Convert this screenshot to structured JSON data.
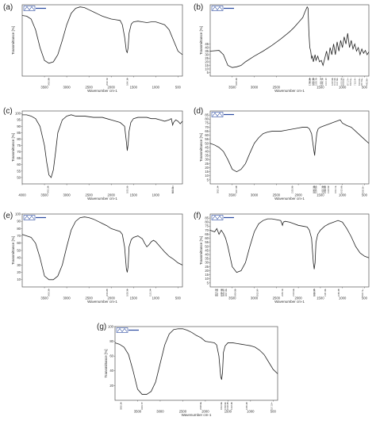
{
  "figure": {
    "panels": [
      "a",
      "b",
      "c",
      "d",
      "e",
      "f",
      "g"
    ]
  },
  "chart_data": [
    {
      "panel": "(a)",
      "type": "line",
      "logo": true,
      "xlabel": "Wavenumber cm-1",
      "ylabel": "Transmittance [%]",
      "xlim": [
        4000,
        400
      ],
      "ylim": [
        0,
        100
      ],
      "xticks": [
        "3500",
        "3000",
        "2500",
        "2000",
        "1500",
        "1000",
        "500"
      ],
      "yticks": [],
      "x": [
        4000,
        3900,
        3800,
        3700,
        3600,
        3500,
        3400,
        3300,
        3200,
        3100,
        3000,
        2900,
        2800,
        2700,
        2600,
        2500,
        2400,
        2300,
        2200,
        2100,
        2000,
        1900,
        1800,
        1750,
        1700,
        1660,
        1640,
        1620,
        1600,
        1550,
        1500,
        1400,
        1300,
        1200,
        1100,
        1000,
        900,
        800,
        700,
        600,
        500,
        400
      ],
      "y": [
        85,
        84,
        80,
        65,
        40,
        22,
        18,
        20,
        30,
        50,
        72,
        88,
        95,
        97,
        96,
        93,
        90,
        87,
        84,
        82,
        80,
        79,
        78,
        72,
        55,
        35,
        33,
        40,
        60,
        73,
        76,
        77,
        76,
        75,
        76,
        76,
        74,
        72,
        65,
        50,
        35,
        30
      ],
      "peaks": [
        "3402.88",
        "2092.72",
        "1640.16"
      ]
    },
    {
      "panel": "(b)",
      "type": "line",
      "logo": true,
      "xlabel": "Wavenumber cm-1",
      "ylabel": "Transmittance [%]",
      "xlim": [
        4000,
        400
      ],
      "ylim": [
        0,
        100
      ],
      "xticks": [
        "3500",
        "3000",
        "2500",
        "1500",
        "1000",
        "500"
      ],
      "yticks": [
        "5",
        "10",
        "15",
        "20",
        "25",
        "30",
        "35",
        "40",
        "45"
      ],
      "x": [
        4000,
        3800,
        3700,
        3600,
        3500,
        3400,
        3300,
        3200,
        3000,
        2800,
        2600,
        2400,
        2200,
        2100,
        2000,
        1900,
        1850,
        1800,
        1780,
        1760,
        1740,
        1720,
        1700,
        1680,
        1660,
        1640,
        1620,
        1600,
        1560,
        1520,
        1480,
        1440,
        1400,
        1360,
        1320,
        1280,
        1240,
        1200,
        1160,
        1120,
        1080,
        1040,
        1000,
        960,
        920,
        880,
        840,
        800,
        760,
        720,
        680,
        640,
        600,
        560,
        520,
        480,
        440,
        400
      ],
      "y": [
        35,
        36,
        30,
        15,
        12,
        13,
        15,
        20,
        28,
        35,
        43,
        52,
        62,
        68,
        75,
        82,
        90,
        97,
        95,
        60,
        40,
        35,
        25,
        28,
        20,
        25,
        30,
        22,
        28,
        20,
        22,
        15,
        25,
        35,
        22,
        40,
        30,
        45,
        30,
        48,
        35,
        50,
        40,
        55,
        45,
        60,
        40,
        50,
        38,
        45,
        35,
        40,
        30,
        38,
        32,
        36,
        30,
        34
      ],
      "peaks": [
        "3405.43",
        "1743.32",
        "1736.04",
        "1663.49",
        "1652.30",
        "1593.73",
        "1490.79",
        "1446.74",
        "1372.17",
        "1225.95",
        "1172.34",
        "1117.82",
        "1015.52",
        "974.61",
        "877.27",
        "810.51",
        "715.14",
        "613.18",
        "557.63",
        "443.96"
      ]
    },
    {
      "panel": "(c)",
      "type": "line",
      "logo": false,
      "xlabel": "Wavenumber cm-1",
      "ylabel": "Transmittance [%]",
      "xlim": [
        4000,
        400
      ],
      "ylim": [
        45,
        102
      ],
      "xticks": [
        "4000",
        "3500",
        "3000",
        "2500",
        "2000",
        "1500",
        "1000"
      ],
      "yticks": [
        "50",
        "55",
        "60",
        "65",
        "70",
        "75",
        "80",
        "85",
        "90",
        "95",
        "100"
      ],
      "x": [
        4000,
        3900,
        3800,
        3700,
        3600,
        3500,
        3450,
        3400,
        3350,
        3300,
        3250,
        3200,
        3100,
        3000,
        2900,
        2800,
        2600,
        2400,
        2200,
        2100,
        2000,
        1900,
        1800,
        1700,
        1660,
        1640,
        1620,
        1600,
        1560,
        1500,
        1400,
        1300,
        1200,
        1100,
        1000,
        900,
        800,
        700,
        650,
        620,
        600,
        550,
        500,
        450,
        400
      ],
      "y": [
        99,
        99,
        98,
        96,
        90,
        75,
        62,
        52,
        50,
        56,
        70,
        85,
        95,
        98,
        99,
        98,
        98,
        97,
        97,
        96,
        95,
        94,
        93,
        90,
        78,
        71,
        76,
        86,
        93,
        96,
        97,
        97,
        97,
        96,
        96,
        95,
        94,
        95,
        96,
        91,
        93,
        95,
        94,
        92,
        94
      ],
      "peaks": [
        "3415.24",
        "1635.51",
        "617.75",
        "609.63"
      ]
    },
    {
      "panel": "(d)",
      "type": "line",
      "logo": true,
      "xlabel": "Wavenumber cm-1",
      "ylabel": "Transmittance [%]",
      "xlim": [
        4000,
        400
      ],
      "ylim": [
        0,
        90
      ],
      "xticks": [
        "3500",
        "3000",
        "2500",
        "2000",
        "1500",
        "1000",
        "500"
      ],
      "yticks": [
        "5",
        "10",
        "15",
        "20",
        "25",
        "30",
        "35",
        "40",
        "45",
        "50",
        "55",
        "60",
        "65",
        "70",
        "75",
        "80",
        "85"
      ],
      "x": [
        4000,
        3900,
        3800,
        3700,
        3600,
        3500,
        3400,
        3300,
        3200,
        3100,
        3000,
        2900,
        2800,
        2700,
        2600,
        2500,
        2400,
        2300,
        2200,
        2100,
        2000,
        1900,
        1800,
        1750,
        1700,
        1650,
        1630,
        1610,
        1580,
        1550,
        1500,
        1400,
        1300,
        1200,
        1100,
        1050,
        1000,
        900,
        800,
        700,
        600,
        500,
        400
      ],
      "y": [
        50,
        48,
        45,
        40,
        30,
        18,
        15,
        18,
        25,
        38,
        50,
        57,
        62,
        64,
        65,
        65,
        65,
        66,
        67,
        68,
        69,
        70,
        70,
        68,
        62,
        42,
        35,
        48,
        63,
        68,
        70,
        72,
        74,
        76,
        78,
        79,
        75,
        72,
        70,
        65,
        60,
        55,
        50
      ],
      "peaks": [
        "3825.24",
        "3407.98",
        "2135.82",
        "1645.35",
        "1635.29",
        "1594.90",
        "1452.38",
        "1413.18",
        "1388.90",
        "1318.52",
        "1152.71",
        "1023.02",
        "536.92"
      ]
    },
    {
      "panel": "(e)",
      "type": "line",
      "logo": true,
      "xlabel": "Wavenumber cm-1",
      "ylabel": "Transmittance [%]",
      "xlim": [
        4000,
        400
      ],
      "ylim": [
        0,
        100
      ],
      "xticks": [
        "3500",
        "3000",
        "2500",
        "2000",
        "1500",
        "1000",
        "500"
      ],
      "yticks": [
        "10",
        "20",
        "30",
        "40",
        "50",
        "60",
        "70",
        "80",
        "90",
        "100"
      ],
      "x": [
        4000,
        3900,
        3800,
        3700,
        3600,
        3500,
        3400,
        3300,
        3200,
        3100,
        3000,
        2900,
        2800,
        2700,
        2600,
        2500,
        2400,
        2300,
        2200,
        2100,
        2000,
        1900,
        1800,
        1750,
        1700,
        1660,
        1640,
        1620,
        1600,
        1550,
        1500,
        1400,
        1300,
        1250,
        1200,
        1150,
        1100,
        1050,
        1000,
        900,
        800,
        700,
        600,
        500,
        400
      ],
      "y": [
        72,
        70,
        68,
        60,
        40,
        15,
        10,
        10,
        15,
        30,
        55,
        78,
        90,
        95,
        96,
        95,
        93,
        90,
        87,
        84,
        80,
        78,
        76,
        72,
        55,
        25,
        20,
        28,
        55,
        65,
        68,
        70,
        66,
        60,
        55,
        58,
        62,
        64,
        62,
        55,
        48,
        42,
        38,
        33,
        30
      ],
      "peaks": [
        "3403.30",
        "2093.85",
        "1638.36",
        "1122.24"
      ]
    },
    {
      "panel": "(f)",
      "type": "line",
      "logo": true,
      "xlabel": "Wavenumber cm-1",
      "ylabel": "Transmittance [%]",
      "xlim": [
        4000,
        400
      ],
      "ylim": [
        0,
        90
      ],
      "xticks": [
        "3500",
        "3000",
        "2500",
        "2000",
        "1500",
        "1000",
        "500"
      ],
      "yticks": [
        "5",
        "10",
        "15",
        "20",
        "25",
        "30",
        "35",
        "40",
        "45",
        "50",
        "55",
        "60",
        "65",
        "70",
        "75",
        "80",
        "85"
      ],
      "x": [
        4000,
        3900,
        3850,
        3800,
        3750,
        3700,
        3650,
        3600,
        3500,
        3400,
        3300,
        3200,
        3100,
        3000,
        2900,
        2800,
        2700,
        2600,
        2500,
        2400,
        2360,
        2340,
        2300,
        2200,
        2100,
        2000,
        1900,
        1800,
        1750,
        1700,
        1660,
        1640,
        1620,
        1600,
        1560,
        1500,
        1400,
        1300,
        1200,
        1100,
        1000,
        900,
        800,
        700,
        600,
        500,
        400
      ],
      "y": [
        70,
        68,
        72,
        65,
        70,
        66,
        60,
        50,
        25,
        18,
        20,
        30,
        50,
        68,
        78,
        82,
        84,
        84,
        83,
        82,
        76,
        80,
        81,
        80,
        78,
        76,
        75,
        74,
        70,
        60,
        30,
        22,
        30,
        55,
        65,
        70,
        75,
        78,
        80,
        82,
        80,
        72,
        62,
        50,
        42,
        38,
        36
      ],
      "peaks": [
        "3873.72",
        "3837.56",
        "3746.70",
        "3727.71",
        "3694.37",
        "3637.83",
        "3434.82",
        "2925.87",
        "2359.70",
        "2104.09",
        "1642.75",
        "1628.97",
        "1387.84",
        "1086.46",
        "539.73"
      ]
    },
    {
      "panel": "(g)",
      "type": "line",
      "logo": true,
      "xlabel": "Wavenumber cm-1",
      "ylabel": "Transmittance [%]",
      "xlim": [
        4000,
        400
      ],
      "ylim": [
        0,
        100
      ],
      "xticks": [
        "3500",
        "3000",
        "2500",
        "2000",
        "1500",
        "1000",
        "500"
      ],
      "yticks": [
        "20",
        "40",
        "60",
        "80",
        "100"
      ],
      "x": [
        4000,
        3900,
        3800,
        3700,
        3600,
        3500,
        3400,
        3300,
        3200,
        3100,
        3000,
        2900,
        2800,
        2700,
        2600,
        2500,
        2400,
        2300,
        2200,
        2100,
        2000,
        1900,
        1800,
        1750,
        1700,
        1660,
        1640,
        1620,
        1600,
        1560,
        1500,
        1400,
        1300,
        1200,
        1100,
        1000,
        900,
        800,
        700,
        600,
        500,
        400
      ],
      "y": [
        78,
        76,
        72,
        62,
        40,
        15,
        8,
        8,
        12,
        25,
        50,
        75,
        90,
        96,
        97,
        97,
        95,
        92,
        88,
        85,
        80,
        79,
        78,
        75,
        60,
        32,
        28,
        38,
        65,
        74,
        78,
        78,
        77,
        76,
        75,
        74,
        72,
        68,
        62,
        52,
        42,
        36
      ],
      "peaks": [
        "3865.25",
        "3403.77",
        "2098.56",
        "1642.96",
        "1558.91",
        "1508.45",
        "1418.46",
        "1085.29",
        "527.52"
      ]
    }
  ]
}
